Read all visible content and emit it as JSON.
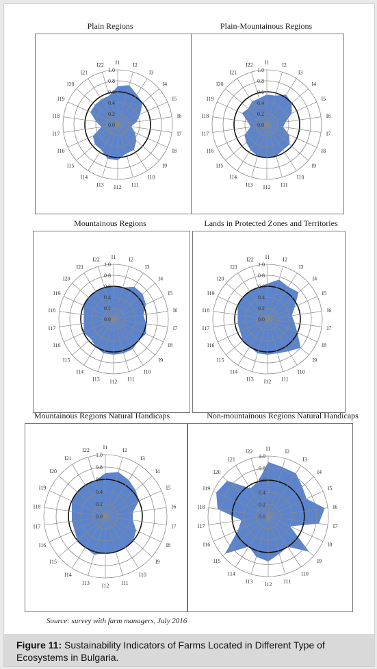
{
  "caption": {
    "label": "Figure 11:",
    "text": "Sustainability Indicators of Farms Located in Different Type of Ecosystems in Bulgaria."
  },
  "source": "Source: survey with farm managers, July 2016",
  "colors": {
    "fill": "#3f6fc4",
    "grid": "#8a8a8a",
    "ring_dark": "#111111"
  },
  "chart_data": [
    {
      "type": "radar",
      "title": "Plain Regions",
      "axes": [
        "I1",
        "I2",
        "I3",
        "I4",
        "I5",
        "I6",
        "I7",
        "I8",
        "I9",
        "I10",
        "I11",
        "I12",
        "I13",
        "I14",
        "I15",
        "I16",
        "I17",
        "I18",
        "I19",
        "I20",
        "I21",
        "I22"
      ],
      "rlim": [
        0,
        1.0
      ],
      "ring_labels": [
        "0.0",
        "0.2",
        "0.4",
        "0.6",
        "0.8",
        "1.0"
      ],
      "highlight_ring": 0.6,
      "values": [
        0.7,
        0.75,
        0.65,
        0.6,
        0.45,
        0.35,
        0.25,
        0.35,
        0.45,
        0.55,
        0.55,
        0.65,
        0.65,
        0.55,
        0.55,
        0.5,
        0.3,
        0.4,
        0.55,
        0.55,
        0.55,
        0.55
      ]
    },
    {
      "type": "radar",
      "title": "Plain-Mountainous Regions",
      "axes": [
        "I1",
        "I2",
        "I3",
        "I4",
        "I5",
        "I6",
        "I7",
        "I8",
        "I9",
        "I10",
        "I11",
        "I12",
        "I13",
        "I14",
        "I15",
        "I16",
        "I17",
        "I18",
        "I19",
        "I20",
        "I21",
        "I22"
      ],
      "rlim": [
        0,
        1.0
      ],
      "ring_labels": [
        "0.0",
        "0.2",
        "0.4",
        "0.6",
        "0.8",
        "1.0"
      ],
      "highlight_ring": 0.6,
      "values": [
        0.55,
        0.55,
        0.65,
        0.6,
        0.5,
        0.35,
        0.3,
        0.45,
        0.55,
        0.55,
        0.6,
        0.6,
        0.6,
        0.55,
        0.5,
        0.45,
        0.3,
        0.35,
        0.5,
        0.45,
        0.5,
        0.5
      ]
    },
    {
      "type": "radar",
      "title": "Mountainous Regions",
      "axes": [
        "I1",
        "I2",
        "I3",
        "I4",
        "I5",
        "I6",
        "I7",
        "I8",
        "I9",
        "I10",
        "I11",
        "I12",
        "I13",
        "I14",
        "I15",
        "I16",
        "I17",
        "I18",
        "I19",
        "I20",
        "I21",
        "I22"
      ],
      "rlim": [
        0,
        1.0
      ],
      "ring_labels": [
        "0.0",
        "0.2",
        "0.4",
        "0.6",
        "0.8",
        "1.0"
      ],
      "highlight_ring": 0.6,
      "values": [
        0.6,
        0.6,
        0.7,
        0.7,
        0.65,
        0.55,
        0.6,
        0.65,
        0.6,
        0.65,
        0.65,
        0.65,
        0.65,
        0.6,
        0.55,
        0.6,
        0.55,
        0.55,
        0.6,
        0.6,
        0.6,
        0.6
      ]
    },
    {
      "type": "radar",
      "title": "Lands in Protected Zones and Territories",
      "axes": [
        "I1",
        "I2",
        "I3",
        "I4",
        "I5",
        "I6",
        "I7",
        "I8",
        "I9",
        "I10",
        "I11",
        "I12",
        "I13",
        "I14",
        "I15",
        "I16",
        "I17",
        "I18",
        "I19",
        "I20",
        "I21",
        "I22"
      ],
      "rlim": [
        0,
        1.0
      ],
      "ring_labels": [
        "0.0",
        "0.2",
        "0.4",
        "0.6",
        "0.8",
        "1.0"
      ],
      "highlight_ring": 0.6,
      "values": [
        0.65,
        0.75,
        0.7,
        0.75,
        0.55,
        0.45,
        0.5,
        0.6,
        0.8,
        0.7,
        0.65,
        0.65,
        0.65,
        0.6,
        0.6,
        0.55,
        0.55,
        0.55,
        0.6,
        0.6,
        0.6,
        0.6
      ]
    },
    {
      "type": "radar",
      "title": "Mountainous Regions Natural Handicaps",
      "axes": [
        "I1",
        "I2",
        "I3",
        "I4",
        "I5",
        "I6",
        "I7",
        "I8",
        "I9",
        "I10",
        "I11",
        "I12",
        "I13",
        "I14",
        "I15",
        "I16",
        "I17",
        "I18",
        "I19",
        "I20",
        "I21",
        "I22"
      ],
      "rlim": [
        0,
        1.0
      ],
      "ring_labels": [
        "0.0",
        "0.2",
        "0.4",
        "0.6",
        "0.8",
        "1.0"
      ],
      "highlight_ring": 0.6,
      "values": [
        0.7,
        0.75,
        0.7,
        0.65,
        0.6,
        0.45,
        0.45,
        0.55,
        0.6,
        0.6,
        0.6,
        0.6,
        0.65,
        0.6,
        0.6,
        0.55,
        0.55,
        0.55,
        0.6,
        0.6,
        0.6,
        0.6
      ]
    },
    {
      "type": "radar",
      "title": "Non-mountainous Regions Natural Handicaps",
      "axes": [
        "I1",
        "I2",
        "I3",
        "I4",
        "I5",
        "I6",
        "I7",
        "I8",
        "I9",
        "I10",
        "I11",
        "I12",
        "I13",
        "I14",
        "I15",
        "I16",
        "I17",
        "I18",
        "I19",
        "I20",
        "I21",
        "I22"
      ],
      "rlim": [
        0,
        1.0
      ],
      "ring_labels": [
        "0.0",
        "0.2",
        "0.4",
        "0.6",
        "0.8",
        "1.0"
      ],
      "highlight_ring": 0.6,
      "values": [
        0.9,
        0.85,
        0.85,
        0.75,
        0.7,
        0.95,
        0.85,
        0.4,
        0.9,
        0.6,
        0.65,
        0.75,
        0.7,
        0.6,
        0.95,
        0.55,
        0.45,
        0.85,
        0.95,
        0.9,
        0.55,
        0.6
      ]
    }
  ]
}
